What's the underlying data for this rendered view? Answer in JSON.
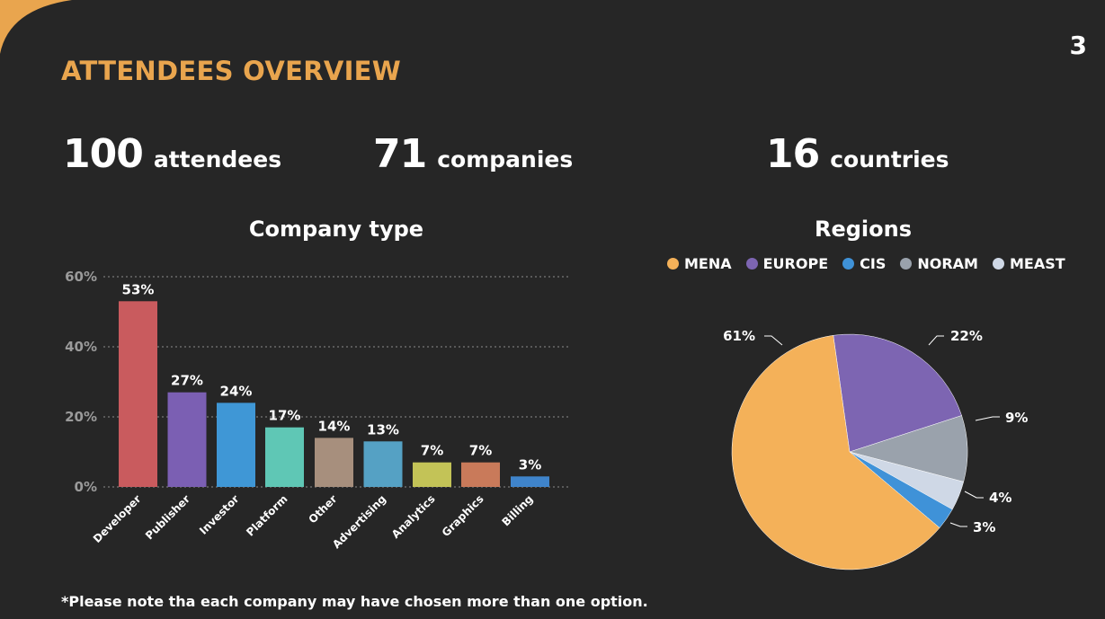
{
  "header": {
    "title": "ATTENDEES OVERVIEW",
    "page_number": "3",
    "accent_color": "#e9a54e"
  },
  "stats": {
    "attendees": {
      "value": "100",
      "label": "attendees"
    },
    "companies": {
      "value": "71",
      "label": "companies"
    },
    "countries": {
      "value": "16",
      "label": "countries"
    }
  },
  "footnote": "*Please note tha each company may have chosen more than one option.",
  "chart_data": [
    {
      "type": "bar",
      "title": "Company type",
      "categories": [
        "Developer",
        "Publisher",
        "Investor",
        "Platform",
        "Other",
        "Advertising",
        "Analytics",
        "Graphics",
        "Billing"
      ],
      "values": [
        53,
        27,
        24,
        17,
        14,
        13,
        7,
        7,
        3
      ],
      "value_labels": [
        "53%",
        "27%",
        "24%",
        "17%",
        "14%",
        "13%",
        "7%",
        "7%",
        "3%"
      ],
      "colors": [
        "#c95b5e",
        "#7b5fb3",
        "#3f97d6",
        "#5fc7b5",
        "#a78f7d",
        "#55a1c4",
        "#c3c357",
        "#c97a5a",
        "#3f84cb"
      ],
      "ylim": [
        0,
        60
      ],
      "yticks": [
        0,
        20,
        40,
        60
      ],
      "ytick_labels": [
        "0%",
        "20%",
        "40%",
        "60%"
      ],
      "grid": true
    },
    {
      "type": "pie",
      "title": "Regions",
      "labels": [
        "MENA",
        "EUROPE",
        "CIS",
        "NORAM",
        "MEAST"
      ],
      "legend_placement": "top",
      "slices": [
        {
          "label": "MENA",
          "value": 61,
          "color": "#f4b159"
        },
        {
          "label": "EUROPE",
          "value": 22,
          "color": "#7d65b2"
        },
        {
          "label": "NORAM",
          "value": 9,
          "color": "#9aa2ac"
        },
        {
          "label": "MEAST",
          "value": 4,
          "color": "#cfd8e6"
        },
        {
          "label": "CIS",
          "value": 3,
          "color": "#3f92d8"
        }
      ],
      "value_labels": [
        "61%",
        "22%",
        "9%",
        "4%",
        "3%"
      ],
      "legend": [
        {
          "label": "MENA",
          "color": "#f4b159"
        },
        {
          "label": "EUROPE",
          "color": "#7d65b2"
        },
        {
          "label": "CIS",
          "color": "#3f92d8"
        },
        {
          "label": "NORAM",
          "color": "#9aa2ac"
        },
        {
          "label": "MEAST",
          "color": "#cfd8e6"
        }
      ]
    }
  ]
}
